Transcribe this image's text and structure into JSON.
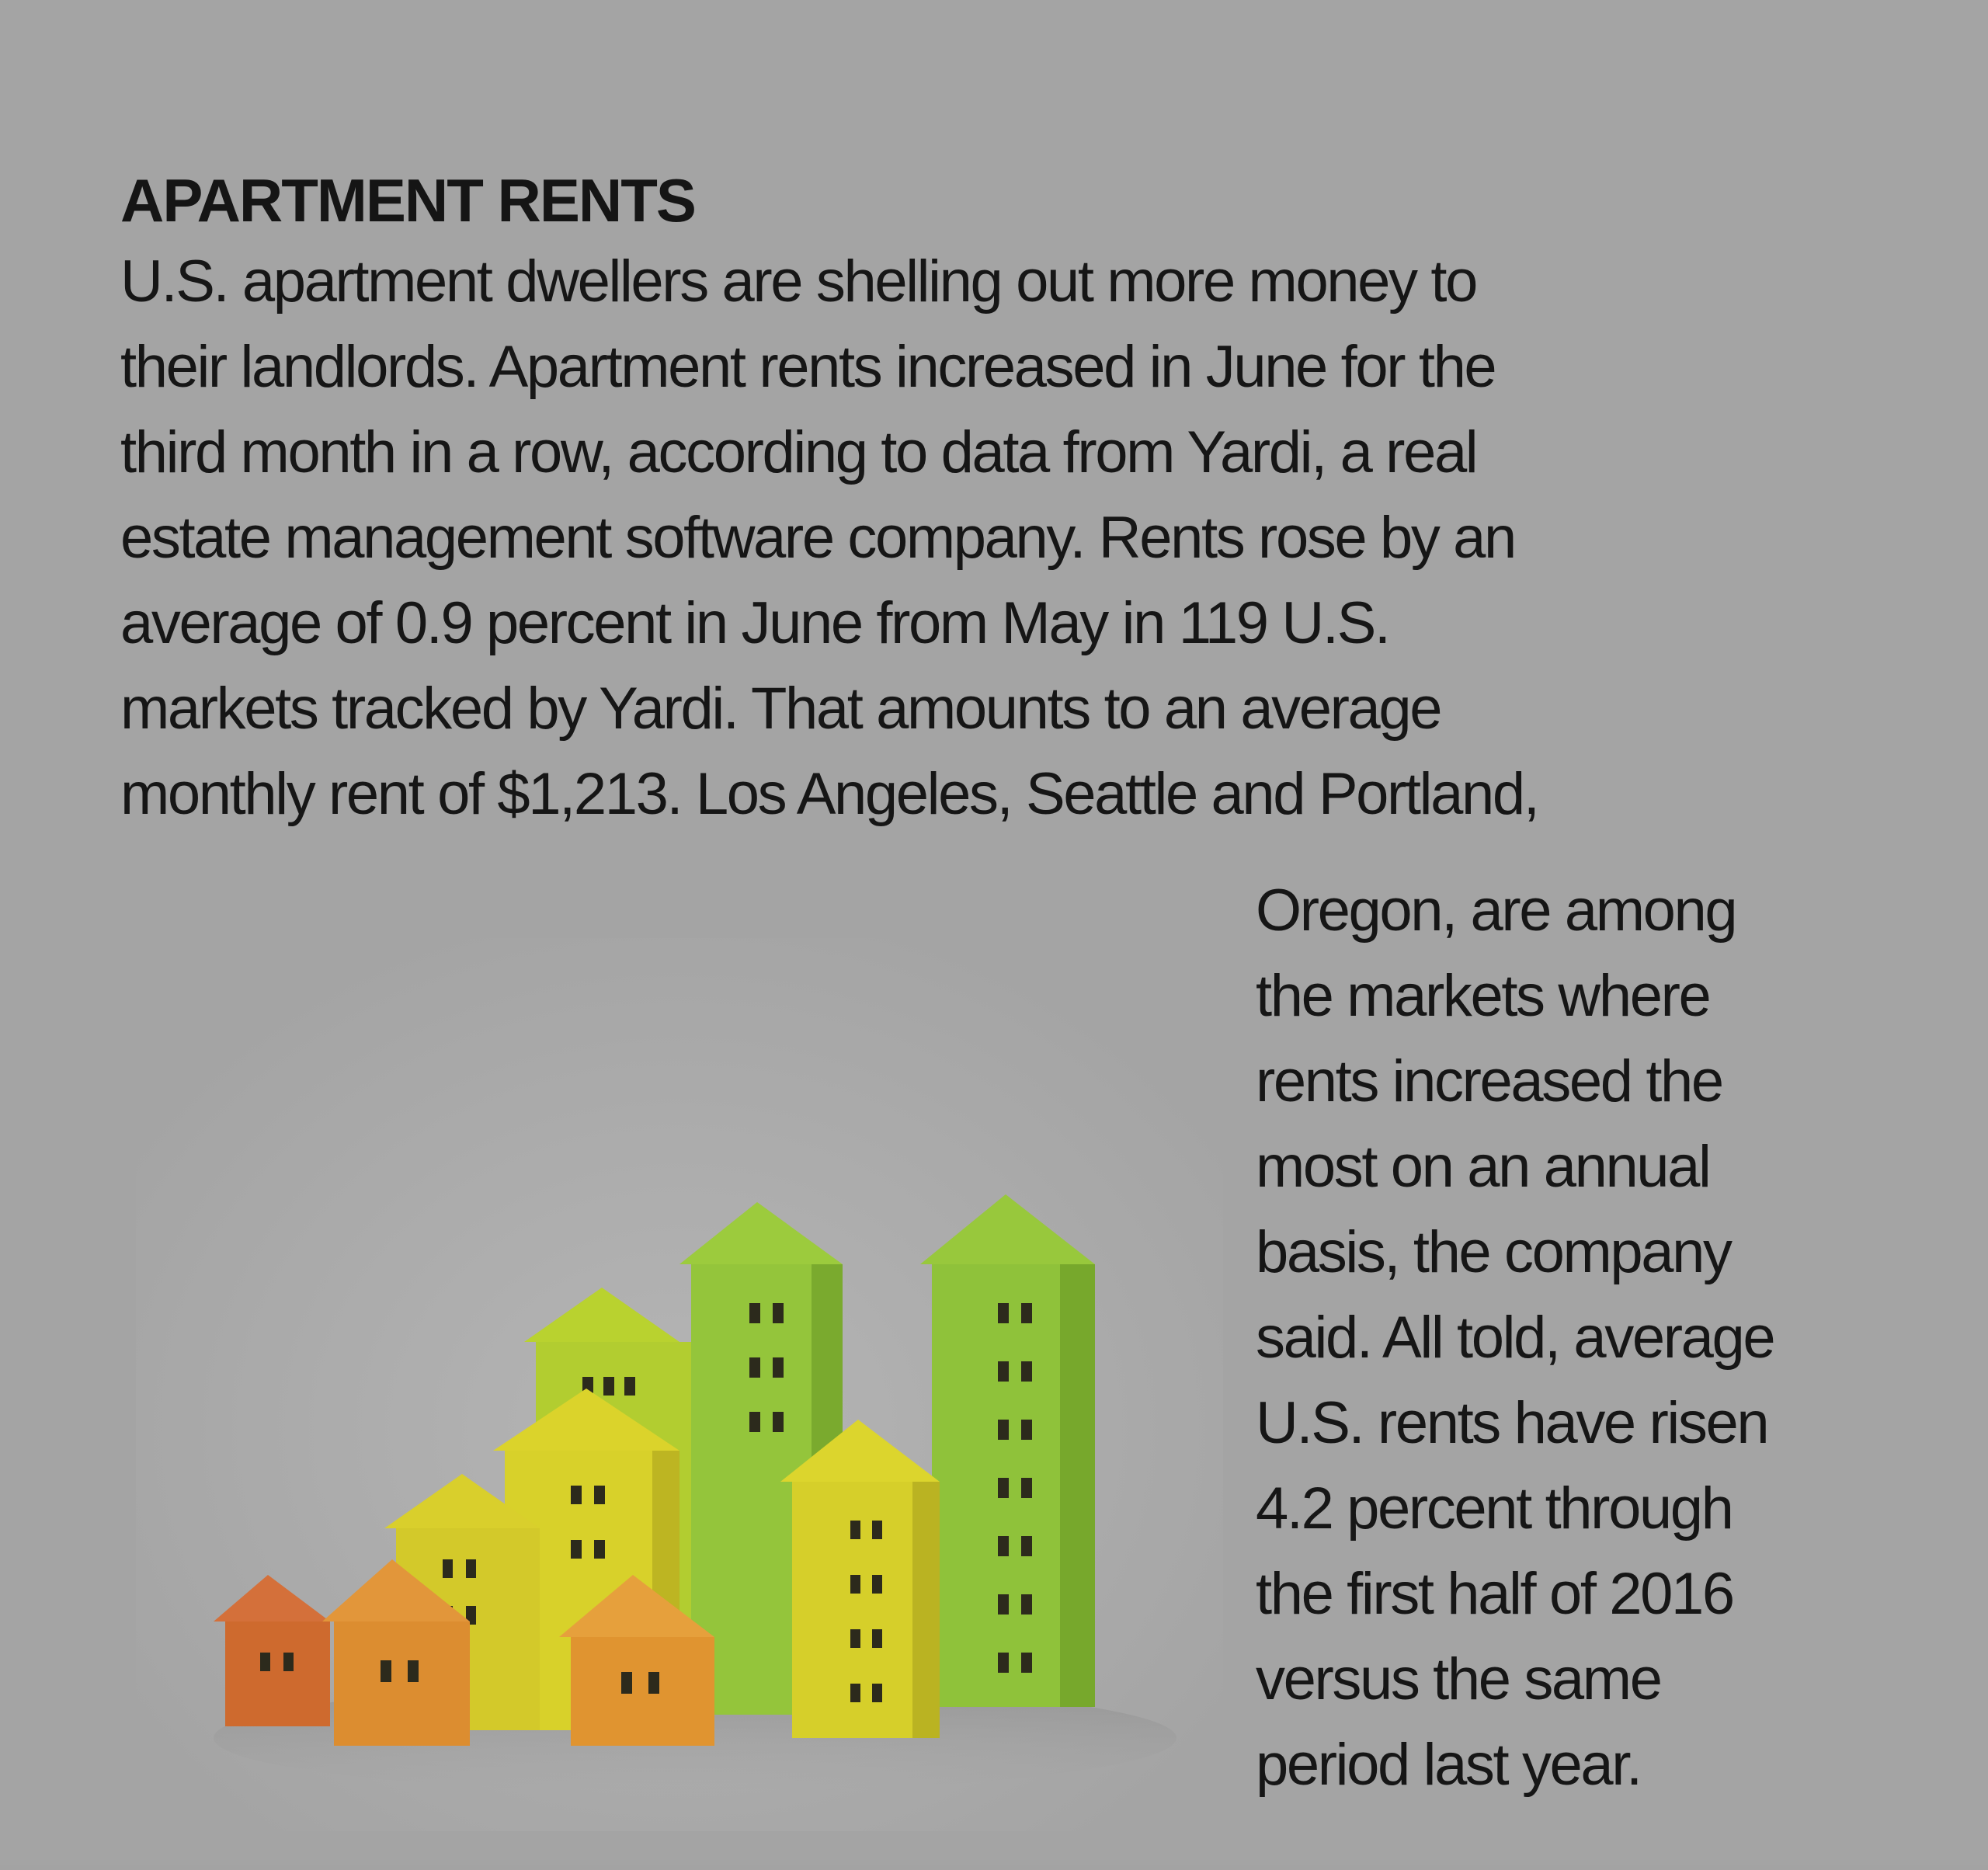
{
  "article": {
    "headline": "APARTMENT RENTS",
    "lead_lines": [
      "U.S. apartment dwellers are shelling out more money to",
      "their landlords. Apartment rents increased in June for the",
      "third month in a row, according to data from Yardi, a real",
      "estate management software company. Rents rose by an",
      "average of 0.9 percent in June from May in 119 U.S.",
      "markets tracked by Yardi. That amounts to an average",
      "monthly rent of $1,213. Los Angeles, Seattle and Portland,"
    ],
    "column_lines": [
      "Oregon, are among",
      "the markets where",
      "rents increased the",
      "most on an annual",
      "basis, the company",
      "said. All told, average",
      "U.S. rents have risen",
      "4.2 percent through",
      "the first half of 2016",
      "versus the same",
      "period last year."
    ]
  },
  "illustration": {
    "icon": "apartment-buildings-illustration",
    "colors": {
      "red_orange": "#d06a2e",
      "orange": "#e0902e",
      "yellow": "#d8d12a",
      "yellow_green": "#b9d22f",
      "green": "#8fc23a",
      "window": "#2c2a1c"
    }
  }
}
